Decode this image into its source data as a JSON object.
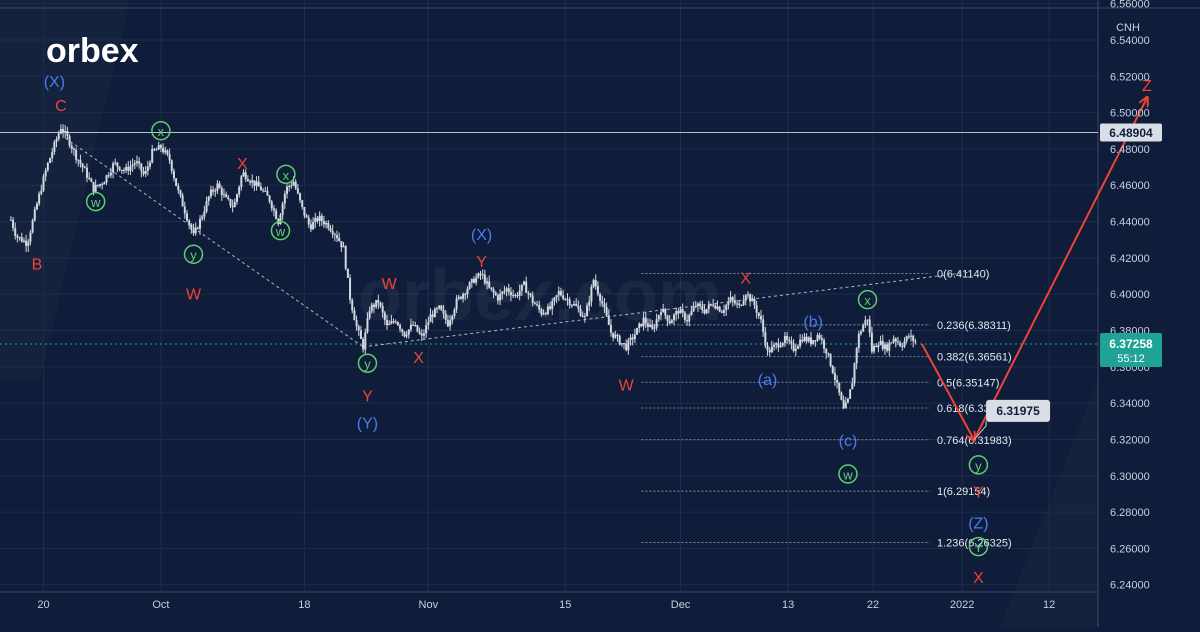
{
  "logo": "orbex",
  "watermark": "orbex.com",
  "colors": {
    "background": "#0f1d3a",
    "grid": "#1e2d4d",
    "axis_text": "#c7cede",
    "candle": "#d4d8e0",
    "red_label": "#ef4335",
    "blue_label": "#4a7bf0",
    "green_label": "#5fcf6c",
    "level_line": "#7f8899",
    "current_price_bg": "#1ea394",
    "resistance_line": "#b9bfcb"
  },
  "symbol_currency": "CNH",
  "price_badge": {
    "price": "6.37258",
    "countdown": "55:12"
  },
  "resistance_badge": "6.48904",
  "target_badge": "6.31975",
  "fib_labels": [
    "0(6.41140)",
    "0.236(6.38311)",
    "0.382(6.36561)",
    "0.5(6.35147)",
    "0.618(6.33733)",
    "0.764(6.31983)",
    "1(6.29154)",
    "1.236(6.26325)"
  ],
  "wave_labels": [
    {
      "text": "(X)",
      "color": "blue",
      "x": 1,
      "y": 6.517
    },
    {
      "text": "C",
      "color": "red",
      "x": 1.6,
      "y": 6.504
    },
    {
      "text": "B",
      "color": "red",
      "x": -0.6,
      "y": 6.4165
    },
    {
      "text": "x",
      "color": "green",
      "x": 10.8,
      "y": 6.49
    },
    {
      "text": "w",
      "color": "green",
      "x": 4.8,
      "y": 6.451
    },
    {
      "text": "y",
      "color": "green",
      "x": 13.8,
      "y": 6.422
    },
    {
      "text": "W",
      "color": "red",
      "x": 13.8,
      "y": 6.4
    },
    {
      "text": "X",
      "color": "red",
      "x": 18.3,
      "y": 6.472
    },
    {
      "text": "w",
      "color": "green",
      "x": 21.8,
      "y": 6.435
    },
    {
      "text": "x",
      "color": "green",
      "x": 22.3,
      "y": 6.466
    },
    {
      "text": "W",
      "color": "red",
      "x": 31.8,
      "y": 6.406
    },
    {
      "text": "y",
      "color": "green",
      "x": 29.8,
      "y": 6.362
    },
    {
      "text": "Y",
      "color": "red",
      "x": 29.8,
      "y": 6.344
    },
    {
      "text": "(Y)",
      "color": "blue",
      "x": 29.8,
      "y": 6.329
    },
    {
      "text": "X",
      "color": "red",
      "x": 34.5,
      "y": 6.365
    },
    {
      "text": "(X)",
      "color": "blue",
      "x": 40.3,
      "y": 6.433
    },
    {
      "text": "Y",
      "color": "red",
      "x": 40.3,
      "y": 6.418
    },
    {
      "text": "W",
      "color": "red",
      "x": 53.6,
      "y": 6.35
    },
    {
      "text": "X",
      "color": "red",
      "x": 64.6,
      "y": 6.409
    },
    {
      "text": "(b)",
      "color": "blue",
      "x": 70.8,
      "y": 6.385
    },
    {
      "text": "(a)",
      "color": "blue",
      "x": 66.6,
      "y": 6.353
    },
    {
      "text": "(c)",
      "color": "blue",
      "x": 74.0,
      "y": 6.3195
    },
    {
      "text": "w",
      "color": "green",
      "x": 74.0,
      "y": 6.301
    },
    {
      "text": "x",
      "color": "green",
      "x": 75.8,
      "y": 6.397
    },
    {
      "text": "y",
      "color": "green",
      "x": 86.0,
      "y": 6.306
    },
    {
      "text": "Y",
      "color": "red",
      "x": 86.0,
      "y": 6.291
    },
    {
      "text": "(Z)",
      "color": "blue",
      "x": 86.0,
      "y": 6.274
    },
    {
      "text": "Y",
      "color": "green",
      "x": 86.0,
      "y": 6.261
    },
    {
      "text": "X",
      "color": "red",
      "x": 86.0,
      "y": 6.244
    },
    {
      "text": "Z",
      "color": "red",
      "x": 101.5,
      "y": 6.515
    }
  ],
  "chart_data": {
    "type": "candlestick",
    "title": "",
    "x_unit": "trading day (0 = Sep 20)",
    "x_ticks": [
      {
        "label": "20",
        "x": 0
      },
      {
        "label": "Oct",
        "x": 10.8
      },
      {
        "label": "18",
        "x": 24.0
      },
      {
        "label": "Nov",
        "x": 35.4
      },
      {
        "label": "15",
        "x": 48.0
      },
      {
        "label": "Dec",
        "x": 58.6
      },
      {
        "label": "13",
        "x": 68.5
      },
      {
        "label": "22",
        "x": 76.3
      },
      {
        "label": "2022",
        "x": 84.5
      },
      {
        "label": "12",
        "x": 92.5
      }
    ],
    "x_range": [
      -4,
      97
    ],
    "y_range": [
      6.236,
      6.562
    ],
    "y_ticks": [
      6.24,
      6.26,
      6.28,
      6.3,
      6.32,
      6.34,
      6.36,
      6.38,
      6.4,
      6.42,
      6.44,
      6.46,
      6.48,
      6.5,
      6.52,
      6.54,
      6.56
    ],
    "y_tick_labels": [
      "6.24000",
      "6.26000",
      "6.28000",
      "6.30000",
      "6.32000",
      "6.34000",
      "6.36000",
      "6.38000",
      "6.40000",
      "6.42000",
      "6.44000",
      "6.46000",
      "6.48000",
      "6.50000",
      "6.52000",
      "6.54000",
      "6.56000"
    ],
    "resistance_level": 6.48904,
    "current_price": 6.37258,
    "fib_levels": [
      6.4114,
      6.38311,
      6.36561,
      6.35147,
      6.33733,
      6.31983,
      6.29154,
      6.26325
    ],
    "fib_start_x": 55,
    "price_path": [
      [
        -3,
        6.441
      ],
      [
        -2.5,
        6.432
      ],
      [
        -1.5,
        6.428
      ],
      [
        -0.5,
        6.452
      ],
      [
        0.3,
        6.47
      ],
      [
        1.0,
        6.482
      ],
      [
        1.6,
        6.492
      ],
      [
        2.3,
        6.485
      ],
      [
        3.0,
        6.476
      ],
      [
        3.8,
        6.468
      ],
      [
        4.6,
        6.458
      ],
      [
        5.5,
        6.462
      ],
      [
        6.5,
        6.472
      ],
      [
        7.5,
        6.468
      ],
      [
        8.5,
        6.473
      ],
      [
        9.3,
        6.465
      ],
      [
        10.0,
        6.478
      ],
      [
        10.8,
        6.481
      ],
      [
        11.6,
        6.474
      ],
      [
        12.3,
        6.458
      ],
      [
        13.0,
        6.446
      ],
      [
        13.8,
        6.432
      ],
      [
        14.5,
        6.442
      ],
      [
        15.3,
        6.455
      ],
      [
        16.0,
        6.46
      ],
      [
        16.8,
        6.452
      ],
      [
        17.5,
        6.448
      ],
      [
        18.3,
        6.467
      ],
      [
        19.2,
        6.462
      ],
      [
        20.0,
        6.458
      ],
      [
        20.8,
        6.452
      ],
      [
        21.6,
        6.44
      ],
      [
        22.3,
        6.458
      ],
      [
        23.0,
        6.462
      ],
      [
        23.8,
        6.447
      ],
      [
        24.5,
        6.437
      ],
      [
        25.3,
        6.442
      ],
      [
        26.2,
        6.438
      ],
      [
        27.0,
        6.432
      ],
      [
        27.6,
        6.425
      ],
      [
        28.2,
        6.398
      ],
      [
        28.8,
        6.382
      ],
      [
        29.4,
        6.371
      ],
      [
        30.0,
        6.392
      ],
      [
        30.8,
        6.396
      ],
      [
        31.6,
        6.382
      ],
      [
        32.4,
        6.386
      ],
      [
        33.2,
        6.378
      ],
      [
        34.0,
        6.383
      ],
      [
        34.8,
        6.376
      ],
      [
        35.6,
        6.388
      ],
      [
        36.4,
        6.392
      ],
      [
        37.2,
        6.384
      ],
      [
        38.0,
        6.396
      ],
      [
        38.8,
        6.402
      ],
      [
        39.6,
        6.408
      ],
      [
        40.3,
        6.411
      ],
      [
        41.0,
        6.403
      ],
      [
        41.8,
        6.398
      ],
      [
        42.6,
        6.403
      ],
      [
        43.4,
        6.399
      ],
      [
        44.2,
        6.405
      ],
      [
        45.0,
        6.396
      ],
      [
        45.8,
        6.39
      ],
      [
        46.6,
        6.392
      ],
      [
        47.4,
        6.401
      ],
      [
        48.2,
        6.397
      ],
      [
        49.0,
        6.393
      ],
      [
        49.8,
        6.387
      ],
      [
        50.6,
        6.408
      ],
      [
        51.4,
        6.395
      ],
      [
        52.2,
        6.379
      ],
      [
        53.0,
        6.374
      ],
      [
        53.6,
        6.371
      ],
      [
        54.4,
        6.378
      ],
      [
        55.2,
        6.386
      ],
      [
        56.0,
        6.38
      ],
      [
        56.8,
        6.392
      ],
      [
        57.6,
        6.385
      ],
      [
        58.4,
        6.391
      ],
      [
        59.2,
        6.386
      ],
      [
        60.0,
        6.394
      ],
      [
        60.8,
        6.391
      ],
      [
        61.6,
        6.395
      ],
      [
        62.4,
        6.391
      ],
      [
        63.2,
        6.397
      ],
      [
        64.0,
        6.393
      ],
      [
        64.6,
        6.401
      ],
      [
        65.4,
        6.394
      ],
      [
        66.0,
        6.385
      ],
      [
        66.6,
        6.368
      ],
      [
        67.4,
        6.372
      ],
      [
        68.2,
        6.375
      ],
      [
        69.0,
        6.37
      ],
      [
        69.8,
        6.376
      ],
      [
        70.6,
        6.374
      ],
      [
        71.3,
        6.378
      ],
      [
        72.0,
        6.369
      ],
      [
        72.6,
        6.358
      ],
      [
        73.2,
        6.345
      ],
      [
        73.6,
        6.336
      ],
      [
        74.0,
        6.341
      ],
      [
        74.4,
        6.352
      ],
      [
        74.9,
        6.376
      ],
      [
        75.4,
        6.383
      ],
      [
        75.8,
        6.387
      ],
      [
        76.2,
        6.369
      ],
      [
        76.8,
        6.374
      ],
      [
        77.5,
        6.37
      ],
      [
        78.2,
        6.376
      ],
      [
        78.9,
        6.372
      ],
      [
        79.6,
        6.377
      ],
      [
        80.3,
        6.373
      ]
    ],
    "forecast_path": [
      [
        80.8,
        6.3726
      ],
      [
        85.6,
        6.3198
      ],
      [
        101.5,
        6.508
      ]
    ],
    "triangle_lines": [
      [
        [
          2.0,
          6.486
        ],
        [
          29.4,
          6.371
        ]
      ],
      [
        [
          29.4,
          6.371
        ],
        [
          85.0,
          6.412
        ]
      ]
    ]
  }
}
